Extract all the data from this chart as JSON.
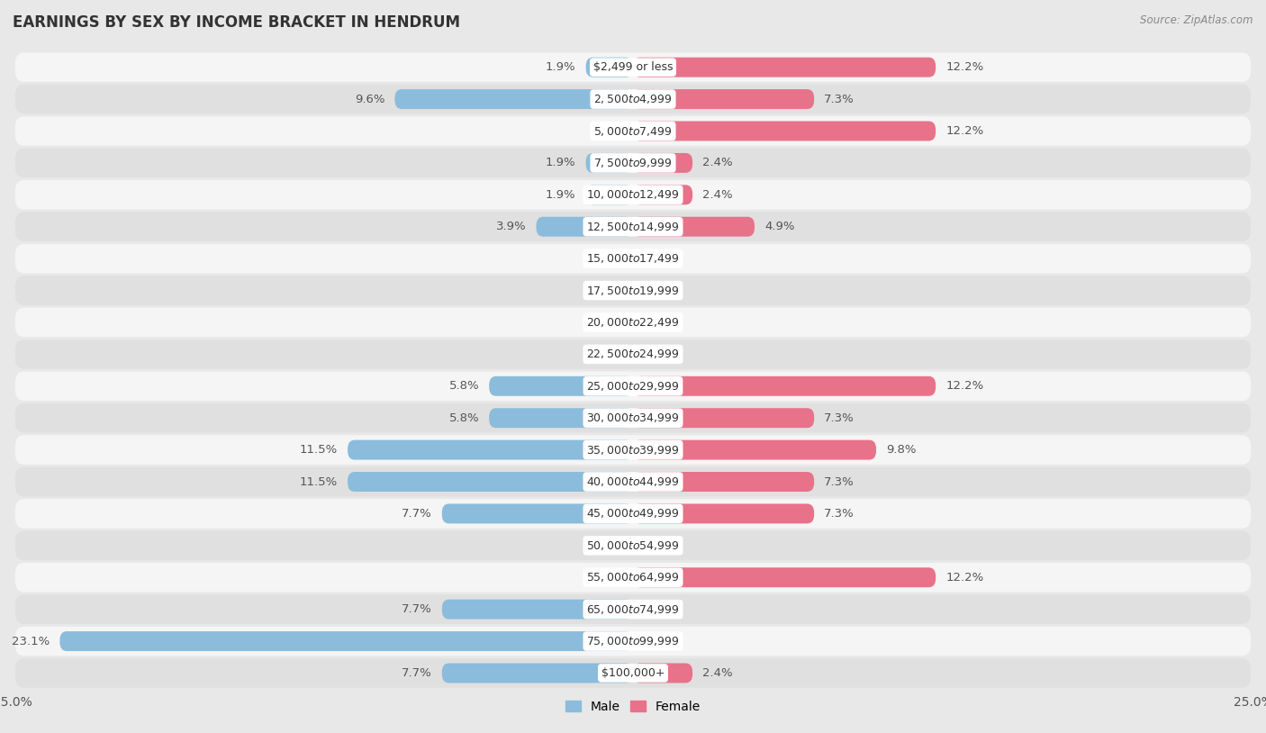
{
  "title": "EARNINGS BY SEX BY INCOME BRACKET IN HENDRUM",
  "source": "Source: ZipAtlas.com",
  "categories": [
    "$2,499 or less",
    "$2,500 to $4,999",
    "$5,000 to $7,499",
    "$7,500 to $9,999",
    "$10,000 to $12,499",
    "$12,500 to $14,999",
    "$15,000 to $17,499",
    "$17,500 to $19,999",
    "$20,000 to $22,499",
    "$22,500 to $24,999",
    "$25,000 to $29,999",
    "$30,000 to $34,999",
    "$35,000 to $39,999",
    "$40,000 to $44,999",
    "$45,000 to $49,999",
    "$50,000 to $54,999",
    "$55,000 to $64,999",
    "$65,000 to $74,999",
    "$75,000 to $99,999",
    "$100,000+"
  ],
  "male_values": [
    1.9,
    9.6,
    0.0,
    1.9,
    1.9,
    3.9,
    0.0,
    0.0,
    0.0,
    0.0,
    5.8,
    5.8,
    11.5,
    11.5,
    7.7,
    0.0,
    0.0,
    7.7,
    23.1,
    7.7
  ],
  "female_values": [
    12.2,
    7.3,
    12.2,
    2.4,
    2.4,
    4.9,
    0.0,
    0.0,
    0.0,
    0.0,
    12.2,
    7.3,
    9.8,
    7.3,
    7.3,
    0.0,
    12.2,
    0.0,
    0.0,
    2.4
  ],
  "male_color": "#8bbcdb",
  "female_color": "#e8728a",
  "male_label": "Male",
  "female_label": "Female",
  "xlim": 25.0,
  "bg_color": "#e8e8e8",
  "row_light_color": "#f5f5f5",
  "row_dark_color": "#e0e0e0",
  "label_fontsize": 9.5,
  "title_fontsize": 12,
  "category_fontsize": 9,
  "bar_height": 0.62
}
